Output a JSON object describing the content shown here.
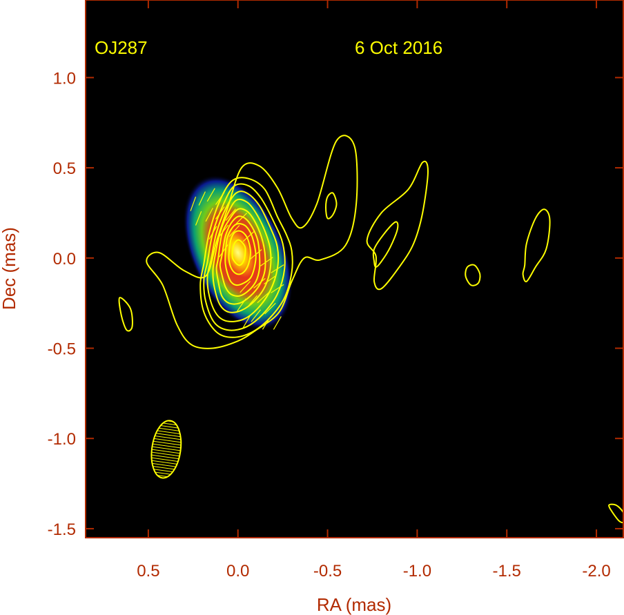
{
  "chart_data": {
    "type": "heatmap",
    "source_name": "OJ287",
    "date": "6 Oct 2016",
    "xlabel": "RA (mas)",
    "ylabel": "Dec (mas)",
    "xlim": [
      0.85,
      -2.15
    ],
    "ylim": [
      -1.55,
      1.43
    ],
    "x_ticks": [
      0.5,
      0.0,
      -0.5,
      -1.0,
      -1.5,
      -2.0
    ],
    "x_tick_labels": [
      "0.5",
      "0.0",
      "-0.5",
      "-1.0",
      "-1.5",
      "-2.0"
    ],
    "y_ticks": [
      1.0,
      0.5,
      0.0,
      -0.5,
      -1.0,
      -1.5
    ],
    "y_tick_labels": [
      "1.0",
      "0.5",
      "0.0",
      "-0.5",
      "-1.0",
      "-1.5"
    ],
    "grid": false,
    "background": "#000000",
    "contour_color": "#ffff00",
    "axis_color": "#b22a00",
    "core": {
      "ra": 0.0,
      "dec": 0.03,
      "peak_position_angle_deg": -25
    },
    "colormap": [
      "#0a1a90",
      "#0aa070",
      "#6ecc1a",
      "#ffd000",
      "#e8361a",
      "#ffff80"
    ],
    "beam": {
      "ra": 0.4,
      "dec": -1.06,
      "major_mas": 0.32,
      "minor_mas": 0.16,
      "position_angle_deg": 8
    },
    "contours": [
      {
        "level": 1,
        "points": [
          [
            0.51,
            -0.02
          ],
          [
            0.44,
            0.03
          ],
          [
            0.3,
            -0.07
          ],
          [
            0.18,
            -0.1
          ],
          [
            0.12,
            0.09
          ],
          [
            0.06,
            0.27
          ],
          [
            -0.02,
            0.5
          ],
          [
            -0.12,
            0.51
          ],
          [
            -0.22,
            0.39
          ],
          [
            -0.3,
            0.22
          ],
          [
            -0.36,
            0.17
          ],
          [
            -0.44,
            0.3
          ],
          [
            -0.55,
            0.65
          ],
          [
            -0.65,
            0.62
          ],
          [
            -0.66,
            0.3
          ],
          [
            -0.6,
            0.07
          ],
          [
            -0.46,
            -0.01
          ],
          [
            -0.37,
            0.0
          ],
          [
            -0.3,
            -0.13
          ],
          [
            -0.23,
            -0.3
          ],
          [
            -0.1,
            -0.4
          ],
          [
            0.0,
            -0.46
          ],
          [
            0.14,
            -0.5
          ],
          [
            0.26,
            -0.48
          ],
          [
            0.34,
            -0.37
          ],
          [
            0.42,
            -0.15
          ]
        ]
      },
      {
        "level": 2,
        "points": [
          [
            0.19,
            -0.03
          ],
          [
            0.16,
            0.14
          ],
          [
            0.1,
            0.32
          ],
          [
            0.03,
            0.43
          ],
          [
            -0.06,
            0.44
          ],
          [
            -0.15,
            0.38
          ],
          [
            -0.22,
            0.23
          ],
          [
            -0.27,
            0.13
          ],
          [
            -0.3,
            0.04
          ],
          [
            -0.3,
            -0.08
          ],
          [
            -0.26,
            -0.22
          ],
          [
            -0.18,
            -0.33
          ],
          [
            -0.08,
            -0.41
          ],
          [
            0.03,
            -0.44
          ],
          [
            0.12,
            -0.41
          ],
          [
            0.19,
            -0.3
          ],
          [
            0.21,
            -0.15
          ]
        ]
      },
      {
        "level": 3,
        "points": [
          [
            0.17,
            -0.02
          ],
          [
            0.14,
            0.14
          ],
          [
            0.08,
            0.3
          ],
          [
            0.02,
            0.4
          ],
          [
            -0.06,
            0.4
          ],
          [
            -0.13,
            0.33
          ],
          [
            -0.2,
            0.2
          ],
          [
            -0.25,
            0.08
          ],
          [
            -0.26,
            -0.06
          ],
          [
            -0.22,
            -0.2
          ],
          [
            -0.14,
            -0.31
          ],
          [
            -0.05,
            -0.38
          ],
          [
            0.05,
            -0.4
          ],
          [
            0.13,
            -0.36
          ],
          [
            0.18,
            -0.24
          ],
          [
            0.19,
            -0.12
          ]
        ]
      },
      {
        "level": 4,
        "points": [
          [
            0.15,
            -0.01
          ],
          [
            0.12,
            0.14
          ],
          [
            0.07,
            0.27
          ],
          [
            0.01,
            0.36
          ],
          [
            -0.05,
            0.36
          ],
          [
            -0.12,
            0.29
          ],
          [
            -0.18,
            0.17
          ],
          [
            -0.22,
            0.06
          ],
          [
            -0.22,
            -0.06
          ],
          [
            -0.18,
            -0.18
          ],
          [
            -0.11,
            -0.28
          ],
          [
            -0.03,
            -0.34
          ],
          [
            0.06,
            -0.35
          ],
          [
            0.12,
            -0.31
          ],
          [
            0.16,
            -0.21
          ],
          [
            0.17,
            -0.1
          ]
        ]
      },
      {
        "level": 5,
        "points": [
          [
            0.13,
            0.0
          ],
          [
            0.1,
            0.14
          ],
          [
            0.06,
            0.24
          ],
          [
            0.01,
            0.32
          ],
          [
            -0.05,
            0.31
          ],
          [
            -0.1,
            0.25
          ],
          [
            -0.15,
            0.15
          ],
          [
            -0.18,
            0.05
          ],
          [
            -0.18,
            -0.06
          ],
          [
            -0.15,
            -0.16
          ],
          [
            -0.09,
            -0.24
          ],
          [
            -0.02,
            -0.29
          ],
          [
            0.05,
            -0.3
          ],
          [
            0.1,
            -0.26
          ],
          [
            0.13,
            -0.17
          ],
          [
            0.14,
            -0.08
          ]
        ]
      },
      {
        "level": 6,
        "points": [
          [
            0.11,
            0.0
          ],
          [
            0.09,
            0.13
          ],
          [
            0.05,
            0.21
          ],
          [
            0.0,
            0.27
          ],
          [
            -0.05,
            0.26
          ],
          [
            -0.09,
            0.21
          ],
          [
            -0.13,
            0.12
          ],
          [
            -0.15,
            0.03
          ],
          [
            -0.15,
            -0.07
          ],
          [
            -0.12,
            -0.15
          ],
          [
            -0.07,
            -0.21
          ],
          [
            -0.01,
            -0.25
          ],
          [
            0.05,
            -0.25
          ],
          [
            0.09,
            -0.21
          ],
          [
            0.11,
            -0.13
          ],
          [
            0.12,
            -0.06
          ]
        ]
      },
      {
        "level": 7,
        "points": [
          [
            0.09,
            0.01
          ],
          [
            0.07,
            0.12
          ],
          [
            0.04,
            0.19
          ],
          [
            0.0,
            0.23
          ],
          [
            -0.04,
            0.22
          ],
          [
            -0.08,
            0.17
          ],
          [
            -0.11,
            0.1
          ],
          [
            -0.12,
            0.02
          ],
          [
            -0.12,
            -0.06
          ],
          [
            -0.1,
            -0.13
          ],
          [
            -0.06,
            -0.18
          ],
          [
            -0.01,
            -0.21
          ],
          [
            0.04,
            -0.2
          ],
          [
            0.07,
            -0.16
          ],
          [
            0.09,
            -0.09
          ],
          [
            0.1,
            -0.04
          ]
        ]
      },
      {
        "level": 8,
        "points": [
          [
            0.07,
            0.02
          ],
          [
            0.06,
            0.11
          ],
          [
            0.03,
            0.17
          ],
          [
            0.0,
            0.19
          ],
          [
            -0.04,
            0.18
          ],
          [
            -0.07,
            0.14
          ],
          [
            -0.09,
            0.08
          ],
          [
            -0.1,
            0.01
          ],
          [
            -0.09,
            -0.06
          ],
          [
            -0.07,
            -0.11
          ],
          [
            -0.03,
            -0.14
          ],
          [
            0.01,
            -0.15
          ],
          [
            0.04,
            -0.13
          ],
          [
            0.06,
            -0.08
          ],
          [
            0.07,
            -0.03
          ]
        ]
      },
      {
        "level": 9,
        "points": [
          [
            0.05,
            0.03
          ],
          [
            0.04,
            0.1
          ],
          [
            0.02,
            0.14
          ],
          [
            -0.01,
            0.15
          ],
          [
            -0.04,
            0.13
          ],
          [
            -0.06,
            0.09
          ],
          [
            -0.07,
            0.03
          ],
          [
            -0.06,
            -0.03
          ],
          [
            -0.04,
            -0.07
          ],
          [
            -0.01,
            -0.09
          ],
          [
            0.02,
            -0.08
          ],
          [
            0.04,
            -0.05
          ],
          [
            0.05,
            -0.01
          ]
        ]
      },
      {
        "level": 10,
        "points": [
          [
            0.03,
            0.04
          ],
          [
            0.02,
            0.08
          ],
          [
            0.0,
            0.1
          ],
          [
            -0.02,
            0.09
          ],
          [
            -0.04,
            0.06
          ],
          [
            -0.04,
            0.02
          ],
          [
            -0.03,
            -0.02
          ],
          [
            -0.01,
            -0.04
          ],
          [
            0.01,
            -0.03
          ],
          [
            0.03,
            0.0
          ]
        ]
      },
      {
        "level": 1,
        "points": [
          [
            -0.49,
            0.28
          ],
          [
            -0.5,
            0.34
          ],
          [
            -0.53,
            0.36
          ],
          [
            -0.55,
            0.3
          ],
          [
            -0.53,
            0.24
          ],
          [
            -0.5,
            0.22
          ]
        ]
      },
      {
        "level": 1,
        "points": [
          [
            -0.77,
            0.01
          ],
          [
            -0.72,
            0.1
          ],
          [
            -0.8,
            0.25
          ],
          [
            -0.95,
            0.38
          ],
          [
            -1.03,
            0.53
          ],
          [
            -1.06,
            0.48
          ],
          [
            -1.03,
            0.25
          ],
          [
            -0.98,
            0.08
          ],
          [
            -0.9,
            -0.05
          ],
          [
            -0.8,
            -0.17
          ],
          [
            -0.76,
            -0.13
          ]
        ]
      },
      {
        "level": 2,
        "points": [
          [
            -0.76,
            -0.02
          ],
          [
            -0.76,
            0.05
          ],
          [
            -0.82,
            0.14
          ],
          [
            -0.88,
            0.2
          ],
          [
            -0.89,
            0.16
          ],
          [
            -0.85,
            0.06
          ],
          [
            -0.8,
            -0.02
          ],
          [
            -0.77,
            -0.05
          ]
        ]
      },
      {
        "level": 1,
        "points": [
          [
            -1.28,
            -0.05
          ],
          [
            -1.32,
            -0.04
          ],
          [
            -1.35,
            -0.09
          ],
          [
            -1.34,
            -0.14
          ],
          [
            -1.3,
            -0.15
          ],
          [
            -1.27,
            -0.1
          ]
        ]
      },
      {
        "level": 1,
        "points": [
          [
            -1.6,
            -0.04
          ],
          [
            -1.61,
            0.08
          ],
          [
            -1.66,
            0.22
          ],
          [
            -1.71,
            0.27
          ],
          [
            -1.74,
            0.21
          ],
          [
            -1.72,
            0.05
          ],
          [
            -1.66,
            -0.05
          ],
          [
            -1.61,
            -0.13
          ],
          [
            -1.59,
            -0.09
          ]
        ]
      },
      {
        "level": 1,
        "points": [
          [
            0.66,
            -0.22
          ],
          [
            0.6,
            -0.28
          ],
          [
            0.59,
            -0.38
          ],
          [
            0.62,
            -0.4
          ],
          [
            0.65,
            -0.32
          ]
        ]
      },
      {
        "level": 1,
        "points": [
          [
            -2.07,
            -1.37
          ],
          [
            -2.09,
            -1.41
          ],
          [
            -2.13,
            -1.46
          ],
          [
            -2.16,
            -1.46
          ],
          [
            -2.15,
            -1.41
          ],
          [
            -2.11,
            -1.37
          ]
        ]
      }
    ],
    "evpa_vectors": [
      {
        "ra": 0.25,
        "dec": 0.3,
        "angle_deg": 20
      },
      {
        "ra": 0.2,
        "dec": 0.33,
        "angle_deg": 25
      },
      {
        "ra": 0.15,
        "dec": 0.35,
        "angle_deg": 30
      },
      {
        "ra": 0.1,
        "dec": 0.33,
        "angle_deg": 35
      },
      {
        "ra": 0.22,
        "dec": 0.22,
        "angle_deg": 22
      },
      {
        "ra": 0.16,
        "dec": 0.24,
        "angle_deg": 28
      },
      {
        "ra": 0.1,
        "dec": 0.25,
        "angle_deg": 35
      },
      {
        "ra": 0.04,
        "dec": 0.24,
        "angle_deg": 40
      },
      {
        "ra": -0.02,
        "dec": 0.22,
        "angle_deg": 45
      },
      {
        "ra": 0.14,
        "dec": 0.14,
        "angle_deg": 30
      },
      {
        "ra": 0.08,
        "dec": 0.15,
        "angle_deg": 38
      },
      {
        "ra": 0.02,
        "dec": 0.15,
        "angle_deg": 42
      },
      {
        "ra": -0.06,
        "dec": 0.12,
        "angle_deg": 48
      },
      {
        "ra": 0.08,
        "dec": 0.04,
        "angle_deg": 35
      },
      {
        "ra": -0.1,
        "dec": 0.02,
        "angle_deg": 50
      },
      {
        "ra": -0.16,
        "dec": -0.02,
        "angle_deg": 55
      },
      {
        "ra": -0.22,
        "dec": -0.06,
        "angle_deg": 58
      },
      {
        "ra": -0.18,
        "dec": -0.12,
        "angle_deg": 55
      },
      {
        "ra": -0.12,
        "dec": -0.14,
        "angle_deg": 50
      },
      {
        "ra": -0.04,
        "dec": -0.16,
        "angle_deg": 42
      },
      {
        "ra": -0.22,
        "dec": -0.17,
        "angle_deg": 57
      },
      {
        "ra": -0.14,
        "dec": -0.22,
        "angle_deg": 48
      },
      {
        "ra": -0.08,
        "dec": -0.24,
        "angle_deg": 40
      },
      {
        "ra": -0.02,
        "dec": -0.26,
        "angle_deg": 35
      },
      {
        "ra": -0.18,
        "dec": -0.28,
        "angle_deg": 45
      },
      {
        "ra": -0.1,
        "dec": -0.32,
        "angle_deg": 38
      },
      {
        "ra": -0.16,
        "dec": -0.36,
        "angle_deg": 32
      },
      {
        "ra": -0.22,
        "dec": -0.36,
        "angle_deg": 30
      },
      {
        "ra": -0.05,
        "dec": -0.35,
        "angle_deg": 30
      }
    ]
  }
}
